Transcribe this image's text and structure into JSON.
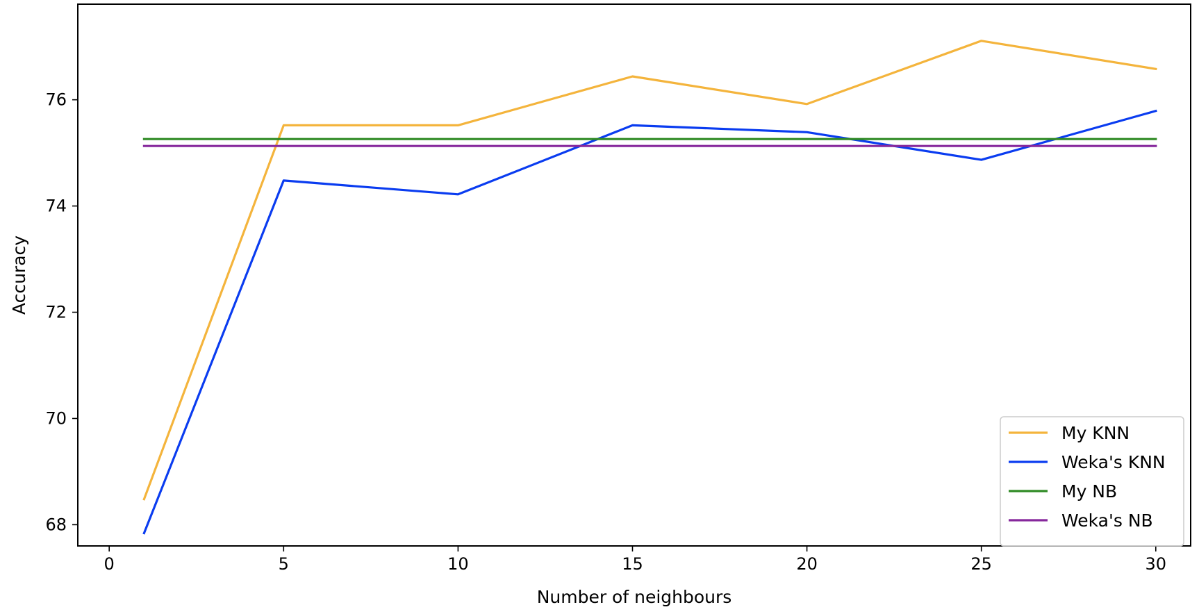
{
  "chart_data": {
    "type": "line",
    "title": "",
    "xlabel": "Number of neighbours",
    "ylabel": "Accuracy",
    "xlim": [
      -0.9,
      31.0
    ],
    "ylim": [
      67.6,
      77.8
    ],
    "xticks": [
      0,
      5,
      10,
      15,
      20,
      25,
      30
    ],
    "yticks": [
      68,
      70,
      72,
      74,
      76
    ],
    "grid": false,
    "legend_position": "bottom-right",
    "x": [
      1,
      5,
      10,
      15,
      20,
      25,
      30
    ],
    "series": [
      {
        "name": "My KNN",
        "color": "#f4b43c",
        "values": [
          68.48,
          75.52,
          75.52,
          76.44,
          75.92,
          77.11,
          76.58
        ]
      },
      {
        "name": "Weka's KNN",
        "color": "#0a3cf0",
        "values": [
          67.84,
          74.48,
          74.22,
          75.52,
          75.39,
          74.87,
          75.79
        ]
      },
      {
        "name": "My NB",
        "color": "#2f8a24",
        "values": [
          75.26,
          75.26,
          75.26,
          75.26,
          75.26,
          75.26,
          75.26
        ]
      },
      {
        "name": "Weka's NB",
        "color": "#86289c",
        "values": [
          75.13,
          75.13,
          75.13,
          75.13,
          75.13,
          75.13,
          75.13
        ]
      }
    ]
  }
}
